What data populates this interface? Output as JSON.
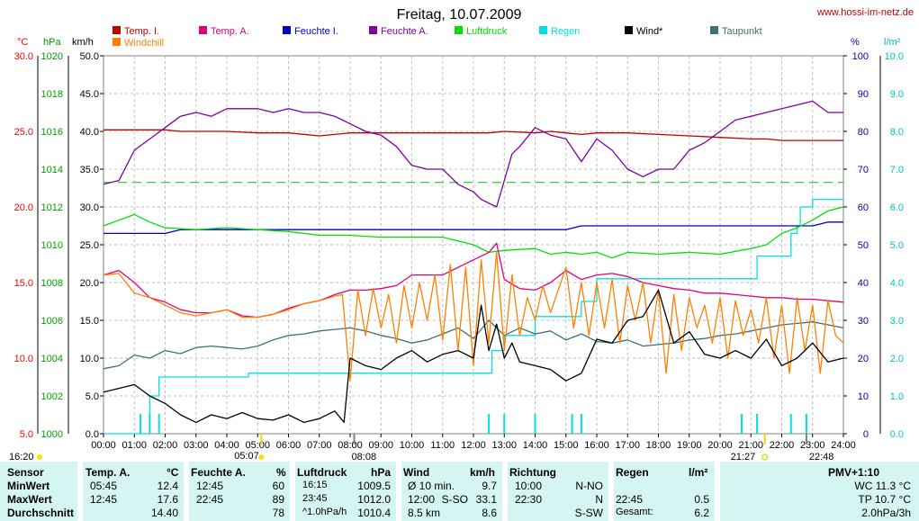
{
  "chart_data": {
    "type": "line",
    "title": "Freitag, 10.07.2009",
    "website": "www.hossi-im-netz.de",
    "x_range": [
      "00:00",
      "24:00"
    ],
    "x_tick_labels": [
      "00:00",
      "01:00",
      "02:00",
      "03:00",
      "04:00",
      "05:00",
      "06:00",
      "07:00",
      "08:00",
      "09:00",
      "10:00",
      "11:00",
      "12:00",
      "13:00",
      "14:00",
      "15:00",
      "16:00",
      "17:00",
      "18:00",
      "19:00",
      "20:00",
      "21:00",
      "22:00",
      "23:00",
      "24:00"
    ],
    "axes": {
      "celsius": {
        "label": "°C",
        "ticks": [
          "5.0",
          "10.0",
          "15.0",
          "20.0",
          "25.0",
          "30.0"
        ],
        "ylim": [
          5,
          30
        ],
        "color": "#ff0000"
      },
      "hpa": {
        "label": "hPa",
        "ticks": [
          "1000",
          "1002",
          "1004",
          "1006",
          "1008",
          "1010",
          "1012",
          "1014",
          "1016",
          "1018",
          "1020"
        ],
        "ylim": [
          1000,
          1020
        ],
        "color": "#00a000"
      },
      "kmh": {
        "label": "km/h",
        "ticks": [
          "0.0",
          "5.0",
          "10.0",
          "15.0",
          "20.0",
          "25.0",
          "30.0",
          "35.0",
          "40.0",
          "45.0",
          "50.0"
        ],
        "ylim": [
          0,
          50
        ],
        "color": "#000000"
      },
      "percent": {
        "label": "%",
        "ticks": [
          "0",
          "10",
          "20",
          "30",
          "40",
          "50",
          "60",
          "70",
          "80",
          "90",
          "100"
        ],
        "ylim": [
          0,
          100
        ],
        "color": "#0000c0"
      },
      "lm2": {
        "label": "l/m²",
        "ticks": [
          "0.0",
          "1.0",
          "2.0",
          "3.0",
          "4.0",
          "5.0",
          "6.0",
          "7.0",
          "8.0",
          "9.0",
          "10.0"
        ],
        "ylim": [
          0,
          10
        ],
        "color": "#00c0c0"
      }
    },
    "legend": [
      {
        "name": "Temp. I.",
        "color": "#c00000"
      },
      {
        "name": "Temp. A.",
        "color": "#e0007a"
      },
      {
        "name": "Feuchte I.",
        "color": "#0000c0"
      },
      {
        "name": "Feuchte A.",
        "color": "#8000a0"
      },
      {
        "name": "Luftdruck",
        "color": "#00e000"
      },
      {
        "name": "Regen",
        "color": "#00e0e0"
      },
      {
        "name": "Wind*",
        "color": "#000000"
      },
      {
        "name": "Taupunkt",
        "color": "#407070"
      },
      {
        "name": "Windchill",
        "color": "#ff8000"
      }
    ],
    "bottom_labels": {
      "start": "16:20",
      "sunrise": "05:07",
      "wind_max_time": "08:08",
      "sunset": "21:27",
      "moon": "22:48"
    },
    "series": [
      {
        "name": "Temp. I.",
        "axis": "celsius",
        "x": [
          0,
          0.5,
          2,
          2.5,
          3,
          4,
          5,
          5.5,
          6,
          7,
          7.5,
          8,
          9,
          10,
          11,
          12,
          12.5,
          13,
          14,
          14.5,
          15,
          15.5,
          16,
          17,
          18,
          19,
          20,
          21,
          21.5,
          22,
          23,
          23.5,
          24
        ],
        "y": [
          25.1,
          25.1,
          25.1,
          25.0,
          25.0,
          25.0,
          24.9,
          24.9,
          24.9,
          24.7,
          24.8,
          24.9,
          24.9,
          24.9,
          24.9,
          24.9,
          24.9,
          25.0,
          24.9,
          25.0,
          24.9,
          24.8,
          24.9,
          24.9,
          24.8,
          24.7,
          24.6,
          24.5,
          24.5,
          24.4,
          24.4,
          24.4,
          24.4
        ]
      },
      {
        "name": "Temp. A.",
        "axis": "celsius",
        "x": [
          0,
          0.5,
          1,
          1.5,
          2,
          2.5,
          3,
          3.5,
          4,
          4.5,
          5,
          5.5,
          6,
          6.5,
          7,
          7.5,
          8,
          8.5,
          9,
          9.5,
          10,
          10.5,
          11,
          11.5,
          12,
          12.5,
          12.75,
          13,
          13.5,
          14,
          14.5,
          15,
          15.5,
          16,
          16.5,
          17,
          17.5,
          18,
          18.5,
          19,
          19.5,
          20,
          20.5,
          21,
          21.5,
          22,
          22.5,
          23,
          23.5,
          24
        ],
        "y": [
          15.5,
          15.8,
          15.0,
          14.0,
          13.7,
          13.2,
          13.0,
          13.0,
          13.2,
          12.8,
          12.7,
          12.9,
          13.3,
          13.6,
          13.8,
          14.2,
          14.5,
          14.5,
          14.6,
          14.8,
          15.5,
          15.5,
          15.5,
          16.0,
          16.5,
          17.0,
          17.6,
          15.2,
          14.6,
          14.5,
          15.0,
          15.8,
          15.2,
          15.5,
          15.6,
          15.4,
          15.0,
          14.8,
          14.6,
          14.5,
          14.3,
          14.3,
          14.2,
          14.1,
          14.0,
          14.0,
          13.9,
          13.9,
          13.8,
          13.7
        ]
      },
      {
        "name": "Feuchte I.",
        "axis": "percent",
        "x": [
          0,
          2,
          2.5,
          13,
          13.5,
          15,
          15.5,
          16,
          23,
          23.5,
          24
        ],
        "y": [
          53,
          53,
          54,
          54,
          54,
          54,
          55,
          55,
          55,
          56,
          56
        ]
      },
      {
        "name": "Feuchte A.",
        "axis": "percent",
        "x": [
          0,
          0.5,
          1,
          1.5,
          2,
          2.5,
          3,
          3.5,
          4,
          4.5,
          5,
          5.5,
          6,
          6.5,
          7,
          7.5,
          8,
          8.5,
          9,
          9.5,
          10,
          10.5,
          11,
          11.5,
          12,
          12.25,
          12.75,
          13,
          13.25,
          13.5,
          14,
          14.5,
          15,
          15.5,
          16,
          16.5,
          17,
          17.5,
          18,
          18.5,
          19,
          19.5,
          20,
          20.5,
          21,
          21.5,
          22,
          22.5,
          23,
          23.5,
          24
        ],
        "y": [
          66,
          67,
          75,
          78,
          81,
          84,
          85,
          84,
          86,
          86,
          86,
          85,
          86,
          85,
          85,
          84,
          82,
          80,
          79,
          76,
          71,
          70,
          70,
          66,
          64,
          62,
          60,
          67,
          74,
          76,
          81,
          79,
          78,
          72,
          78,
          75,
          70,
          68,
          70,
          70,
          75,
          77,
          80,
          83,
          84,
          85,
          86,
          87,
          88,
          85,
          85
        ]
      },
      {
        "name": "Luftdruck",
        "axis": "hpa",
        "x": [
          0,
          0.5,
          1,
          1.5,
          2,
          3,
          4,
          5,
          6,
          7,
          8,
          9,
          10,
          11,
          12,
          12.5,
          13,
          14,
          14.5,
          15,
          15.5,
          16,
          16.5,
          17,
          18,
          19,
          20,
          21,
          21.5,
          22,
          22.5,
          23,
          23.5,
          24
        ],
        "y": [
          1011.0,
          1011.3,
          1011.6,
          1011.2,
          1010.9,
          1010.8,
          1010.9,
          1010.8,
          1010.7,
          1010.5,
          1010.5,
          1010.4,
          1010.4,
          1010.4,
          1010.0,
          1009.6,
          1009.7,
          1009.8,
          1009.5,
          1009.6,
          1009.5,
          1009.6,
          1009.3,
          1009.6,
          1009.5,
          1009.6,
          1009.5,
          1009.8,
          1010.0,
          1010.6,
          1010.9,
          1011.3,
          1011.8,
          1012.0
        ]
      },
      {
        "name": "Regen",
        "axis": "lm2",
        "x": [
          0,
          1.2,
          1.5,
          1.8,
          4.7,
          10,
          12.5,
          12.6,
          13,
          13.5,
          14,
          15.2,
          15.5,
          16,
          20.7,
          21,
          21.2,
          21.5,
          22.3,
          22.5,
          22.6,
          23,
          24
        ],
        "y": [
          0,
          0,
          1.0,
          1.5,
          1.6,
          1.6,
          1.6,
          2.2,
          2.6,
          2.6,
          3.1,
          3.1,
          3.5,
          4.1,
          4.1,
          4.1,
          4.7,
          4.7,
          5.3,
          5.5,
          6.0,
          6.2,
          6.2
        ]
      },
      {
        "name": "Wind*",
        "axis": "kmh",
        "x": [
          0,
          0.5,
          1,
          1.5,
          2,
          2.5,
          3,
          3.5,
          4,
          4.5,
          5,
          5.5,
          6,
          6.5,
          7,
          7.5,
          7.8,
          8,
          8.5,
          9,
          9.5,
          10,
          10.5,
          11,
          11.5,
          12,
          12.25,
          12.5,
          12.75,
          13,
          13.25,
          13.5,
          14,
          14.5,
          15,
          15.5,
          16,
          16.5,
          17,
          17.5,
          18,
          18.5,
          19,
          19.5,
          20,
          20.5,
          21,
          21.5,
          22,
          22.5,
          23,
          23.5,
          24
        ],
        "y": [
          5.5,
          6.0,
          6.5,
          5.0,
          4.0,
          2.5,
          1.5,
          2.5,
          2.0,
          2.8,
          2.0,
          1.8,
          2.5,
          1.5,
          2.0,
          3.0,
          1.5,
          10.0,
          9.0,
          8.5,
          10.0,
          11.0,
          9.5,
          10.5,
          11.0,
          10.0,
          17.0,
          11.0,
          14.5,
          10.0,
          12.0,
          9.5,
          9.0,
          8.5,
          7.0,
          8.0,
          12.5,
          12.0,
          15.0,
          15.5,
          19.0,
          12.0,
          13.5,
          10.5,
          10.0,
          11.0,
          10.0,
          12.5,
          9.0,
          10.0,
          12.0,
          9.5,
          10.0
        ]
      },
      {
        "name": "Taupunkt",
        "axis": "celsius",
        "x": [
          0,
          0.5,
          1,
          1.5,
          2,
          2.5,
          3,
          3.5,
          4,
          4.5,
          5,
          5.5,
          6,
          6.5,
          7,
          7.5,
          8,
          8.5,
          9,
          9.5,
          10,
          10.5,
          11,
          11.5,
          12,
          12.5,
          13,
          13.5,
          14,
          14.5,
          15,
          15.5,
          16,
          16.5,
          17,
          17.5,
          18,
          18.5,
          19,
          19.5,
          20,
          20.5,
          21,
          21.5,
          22,
          22.5,
          23,
          23.5,
          24
        ],
        "y": [
          9.3,
          9.5,
          10.2,
          10.0,
          10.5,
          10.3,
          10.7,
          10.8,
          10.7,
          10.6,
          10.8,
          11.2,
          11.5,
          11.6,
          11.8,
          11.9,
          12.0,
          11.8,
          11.5,
          11.3,
          11.0,
          11.2,
          11.6,
          12.0,
          11.3,
          12.5,
          11.5,
          12.0,
          11.6,
          11.8,
          11.2,
          11.6,
          11.1,
          11.0,
          11.2,
          10.8,
          10.9,
          11.0,
          11.2,
          11.3,
          11.5,
          11.6,
          11.8,
          12.0,
          12.2,
          12.3,
          12.4,
          12.2,
          12.0
        ]
      },
      {
        "name": "Windchill",
        "axis": "celsius",
        "x": [
          0,
          0.5,
          1,
          1.5,
          2,
          2.5,
          3,
          3.5,
          4,
          4.5,
          5,
          5.5,
          6,
          6.5,
          7,
          7.5,
          7.75,
          8,
          8.25,
          8.5,
          8.75,
          9,
          9.25,
          9.5,
          9.75,
          10,
          10.25,
          10.5,
          10.75,
          11,
          11.25,
          11.5,
          11.75,
          12,
          12.25,
          12.5,
          12.75,
          13,
          13.25,
          13.5,
          13.75,
          14,
          14.25,
          14.5,
          14.75,
          15,
          15.25,
          15.5,
          15.75,
          16,
          16.25,
          16.5,
          16.75,
          17,
          17.25,
          17.5,
          17.75,
          18,
          18.25,
          18.5,
          18.75,
          19,
          19.25,
          19.5,
          19.75,
          20,
          20.25,
          20.5,
          20.75,
          21,
          21.25,
          21.5,
          21.75,
          22,
          22.25,
          22.5,
          22.75,
          23,
          23.25,
          23.5,
          23.75,
          24
        ],
        "y": [
          15.5,
          15.6,
          14.3,
          14.0,
          13.5,
          13.0,
          12.8,
          13.0,
          13.2,
          12.7,
          12.7,
          12.9,
          13.2,
          13.6,
          13.8,
          14.1,
          14.2,
          8.5,
          14.5,
          11.5,
          14.6,
          12.0,
          14.2,
          11.0,
          14.8,
          12.0,
          15.0,
          12.5,
          15.5,
          11.2,
          16.2,
          10.5,
          16.0,
          9.5,
          16.5,
          11.0,
          17.0,
          10.5,
          15.5,
          11.5,
          14.0,
          12.5,
          14.8,
          13.0,
          14.5,
          16.0,
          12.0,
          15.0,
          11.5,
          15.0,
          12.0,
          15.2,
          11.0,
          14.8,
          12.5,
          15.0,
          11.0,
          14.5,
          9.0,
          14.2,
          10.5,
          14.0,
          12.0,
          13.5,
          11.0,
          14.0,
          10.0,
          13.8,
          11.5,
          13.2,
          11.0,
          14.0,
          10.0,
          13.5,
          9.0,
          14.0,
          10.5,
          13.5,
          9.0,
          13.8,
          11.5,
          11.0
        ]
      }
    ],
    "wind_dir_markers_x": [
      1.2,
      1.5,
      1.8,
      12.5,
      13.0,
      14.0,
      15.2,
      15.5,
      20.7,
      21.2,
      22.3,
      22.8
    ]
  },
  "stats": {
    "headers": {
      "sensor": "Sensor",
      "temp": "Temp. A.",
      "temp_unit": "°C",
      "feuchte": "Feuchte A.",
      "feuchte_unit": "%",
      "luft": "Luftdruck",
      "luft_unit": "hPa",
      "wind": "Wind",
      "wind_unit": "km/h",
      "richtung": "Richtung",
      "regen": "Regen",
      "regen_unit": "l/m²",
      "pmv": "PMV+1:10"
    },
    "rows": [
      {
        "label": "MinWert",
        "temp_time": "05:45",
        "temp_val": "12.4",
        "feuchte_time": "12:45",
        "feuchte_val": "60",
        "luft_time": "16:15",
        "luft_val": "1009.5",
        "wind_time": "Ø 10 min.",
        "wind_val": "9.7",
        "richtung_time": "10:00",
        "richtung_val": "N-NO",
        "regen_time": "",
        "regen_val": "",
        "pmv": "WC 11.3 °C"
      },
      {
        "label": "MaxWert",
        "temp_time": "12:45",
        "temp_val": "17.6",
        "feuchte_time": "22:45",
        "feuchte_val": "89",
        "luft_time": "23:45",
        "luft_val": "1012.0",
        "wind_time": "12:00",
        "wind_dir": "S-SO",
        "wind_val": "33.1",
        "richtung_time": "22:30",
        "richtung_val": "N",
        "regen_time": "22:45",
        "regen_val": "0.5",
        "pmv": "TP 10.7 °C"
      },
      {
        "label": "Durchschnitt",
        "temp_time": "",
        "temp_val": "14.40",
        "feuchte_time": "",
        "feuchte_val": "78",
        "luft_time": "^1.0hPa/h",
        "luft_val": "1010.4",
        "wind_time": "8.5 km",
        "wind_val": "8.6",
        "richtung_time": "",
        "richtung_val": "S-SW",
        "regen_time": "Gesamt:",
        "regen_val": "6.2",
        "pmv": "2.0hPa/3h"
      }
    ]
  }
}
